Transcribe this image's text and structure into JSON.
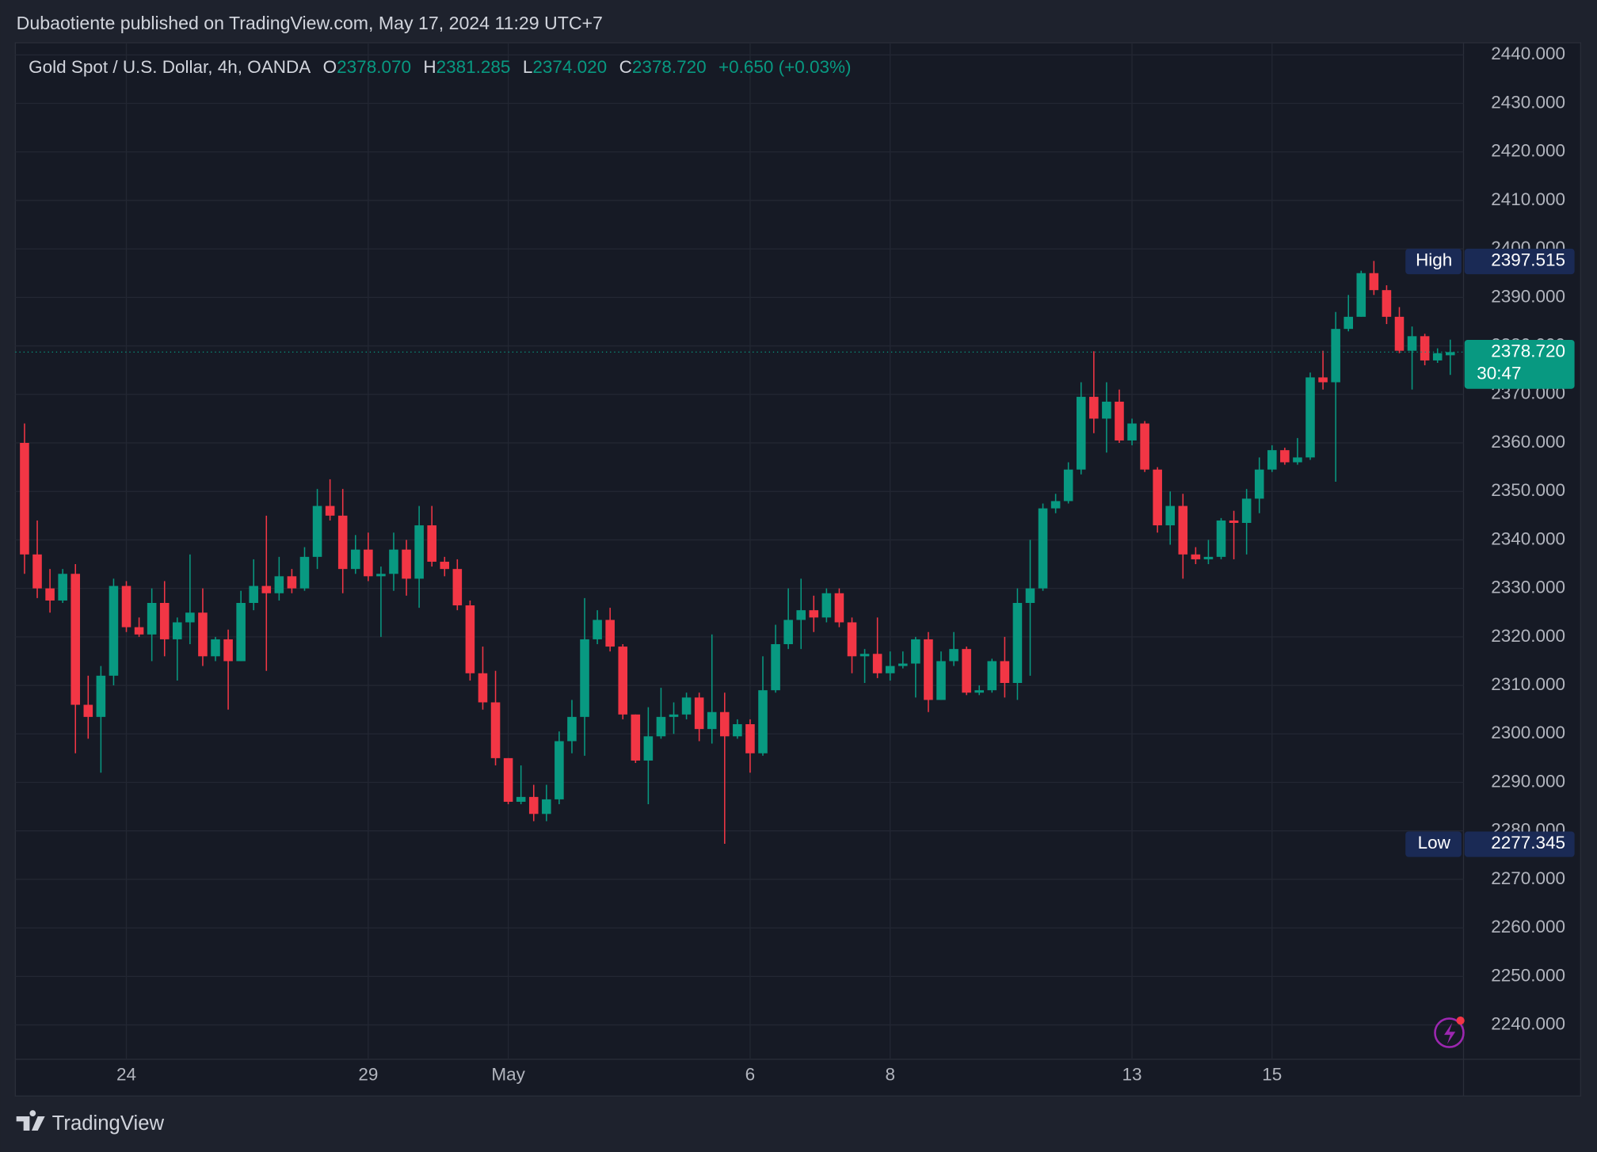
{
  "header": "Dubaotiente published on TradingView.com, May 17, 2024 11:29 UTC+7",
  "footer": "TradingView",
  "chart_data": {
    "type": "candlestick",
    "symbol": "Gold Spot / U.S. Dollar, 4h, OANDA",
    "ohlc_legend": [
      {
        "key": "O",
        "value": "2378.070"
      },
      {
        "key": "H",
        "value": "2381.285"
      },
      {
        "key": "L",
        "value": "2374.020"
      },
      {
        "key": "C",
        "value": "2378.720"
      }
    ],
    "change": "+0.650 (+0.03%)",
    "up_color": "#089981",
    "down_color": "#f23645",
    "categories": [
      null,
      null,
      null,
      null,
      null,
      null,
      null,
      null,
      "24",
      null,
      null,
      null,
      null,
      null,
      null,
      null,
      null,
      null,
      null,
      null,
      null,
      null,
      null,
      null,
      null,
      null,
      null,
      "29",
      null,
      null,
      null,
      null,
      null,
      null,
      null,
      null,
      null,
      null,
      "May",
      null,
      null,
      null,
      null,
      null,
      null,
      null,
      null,
      null,
      null,
      null,
      null,
      null,
      null,
      null,
      null,
      null,
      null,
      "6",
      null,
      null,
      null,
      null,
      null,
      null,
      null,
      null,
      null,
      null,
      "8",
      null,
      null,
      null,
      null,
      null,
      null,
      null,
      null,
      null,
      null,
      null,
      null,
      null,
      null,
      null,
      null,
      null,
      null,
      "13",
      null,
      null,
      null,
      null,
      null,
      null,
      null,
      null,
      null,
      null,
      "15",
      null,
      null,
      null,
      null,
      null,
      null,
      null,
      null,
      null,
      null,
      null,
      null,
      null,
      null
    ],
    "open": [
      2360,
      2337,
      2330,
      2327.5,
      2333,
      2306,
      2303.5,
      2312,
      2330.5,
      2322,
      2320.5,
      2327,
      2319.5,
      2323,
      2325,
      2316,
      2319.5,
      2315,
      2327,
      2330.5,
      2329,
      2332.5,
      2330,
      2336.5,
      2347,
      2345,
      2334,
      2338,
      2332.5,
      2333,
      2338,
      2332,
      2343,
      2335.5,
      2334,
      2326.5,
      2312.5,
      2306.5,
      2295,
      2286,
      2287,
      2283.5,
      2286.5,
      2298.5,
      2303.5,
      2319.5,
      2323.5,
      2318,
      2304,
      2294.5,
      2299.5,
      2303.5,
      2304,
      2307.5,
      2301,
      2304.5,
      2299.5,
      2302,
      2296,
      2309,
      2318.5,
      2323.5,
      2325.5,
      2324,
      2329,
      2323,
      2316,
      2316.5,
      2312.5,
      2314,
      2314.5,
      2319.5,
      2307,
      2315,
      2317.5,
      2308.5,
      2309,
      2315,
      2310.5,
      2327,
      2330,
      2346.5,
      2348,
      2354.5,
      2369.5,
      2365,
      2368.5,
      2360.5,
      2364,
      2354.5,
      2343,
      2347,
      2337,
      2336,
      2336.5,
      2344,
      2343.5,
      2348.5,
      2354.5,
      2358.5,
      2356,
      2357,
      2373.5,
      2372.5,
      2383.5,
      2386,
      2395,
      2391.5,
      2386,
      2379,
      2382,
      2377,
      2378.07
    ],
    "high": [
      2364,
      2344,
      2334,
      2334,
      2335,
      2312,
      2314,
      2332,
      2331.5,
      2324,
      2330,
      2331.5,
      2324,
      2337,
      2330,
      2320,
      2321.5,
      2329.5,
      2336,
      2345,
      2336.5,
      2334,
      2338.5,
      2350.5,
      2352.5,
      2350.5,
      2341,
      2341.5,
      2334.5,
      2341.5,
      2340,
      2347,
      2347,
      2336.5,
      2336,
      2327.5,
      2318,
      2313,
      2295,
      2293.5,
      2289.5,
      2289.5,
      2300.5,
      2307,
      2328,
      2325.5,
      2326,
      2318.5,
      2304,
      2305.5,
      2309.5,
      2306.5,
      2308.5,
      2308.5,
      2320.5,
      2308.5,
      2303,
      2303,
      2316,
      2322.5,
      2330,
      2332,
      2328.5,
      2330,
      2330,
      2324,
      2317.5,
      2324,
      2317,
      2317,
      2320,
      2321,
      2317,
      2321,
      2318,
      2310,
      2315.5,
      2320,
      2330,
      2340,
      2347.5,
      2349.5,
      2356,
      2372.5,
      2378.9,
      2372.5,
      2371,
      2365,
      2364.5,
      2355,
      2350,
      2349.5,
      2338.5,
      2340,
      2344.5,
      2346,
      2350.5,
      2357,
      2359.5,
      2359,
      2361,
      2374.5,
      2379,
      2387,
      2390.5,
      2395.5,
      2397.515,
      2392.5,
      2388,
      2384,
      2382.5,
      2379.5,
      2381.285
    ],
    "low": [
      2333,
      2328,
      2325,
      2327,
      2296,
      2299,
      2292,
      2310,
      2321,
      2320,
      2315,
      2316,
      2311,
      2318.5,
      2314,
      2315,
      2305,
      2315,
      2325.5,
      2313,
      2327.5,
      2329,
      2329.5,
      2334,
      2344,
      2329,
      2333,
      2331.5,
      2320,
      2329.5,
      2328.5,
      2326,
      2334.5,
      2332.5,
      2325.5,
      2311,
      2305,
      2293.5,
      2285.5,
      2285.5,
      2282,
      2282,
      2285.5,
      2296,
      2295.5,
      2318.5,
      2317,
      2303,
      2294,
      2285.5,
      2299,
      2300,
      2303,
      2298.5,
      2298,
      2277.345,
      2299,
      2292,
      2295.5,
      2308.5,
      2317.5,
      2317.5,
      2321,
      2323,
      2322,
      2312.5,
      2310.5,
      2311.5,
      2311,
      2313.5,
      2307.5,
      2304.5,
      2307,
      2314,
      2308,
      2308,
      2308.5,
      2307.5,
      2307,
      2312,
      2329.5,
      2345.5,
      2347.5,
      2353.5,
      2362,
      2358,
      2360,
      2359.5,
      2354,
      2341.5,
      2339,
      2332,
      2335,
      2335,
      2336,
      2336,
      2337,
      2345.5,
      2354,
      2355.5,
      2355.5,
      2356.5,
      2371,
      2352,
      2383,
      2386,
      2390.5,
      2384.5,
      2378.5,
      2371,
      2376,
      2376.5,
      2374.02
    ],
    "close": [
      2337,
      2330,
      2327.5,
      2333,
      2306,
      2303.5,
      2312,
      2330.5,
      2322,
      2320.5,
      2327,
      2319.5,
      2323,
      2325,
      2316,
      2319.5,
      2315,
      2327,
      2330.5,
      2329,
      2332.5,
      2330,
      2336.5,
      2347,
      2345,
      2334,
      2338,
      2332.5,
      2333,
      2338,
      2332,
      2343,
      2335.5,
      2334,
      2326.5,
      2312.5,
      2306.5,
      2295,
      2286,
      2287,
      2283.5,
      2286.5,
      2298.5,
      2303.5,
      2319.5,
      2323.5,
      2318,
      2304,
      2294.5,
      2299.5,
      2303.5,
      2304,
      2307.5,
      2301,
      2304.5,
      2299.5,
      2302,
      2296,
      2309,
      2318.5,
      2323.5,
      2325.5,
      2324,
      2329,
      2323,
      2316,
      2316.5,
      2312.5,
      2314,
      2314.5,
      2319.5,
      2307,
      2315,
      2317.5,
      2308.5,
      2309,
      2315,
      2310.5,
      2327,
      2330,
      2346.5,
      2348,
      2354.5,
      2369.5,
      2365,
      2368.5,
      2360.5,
      2364,
      2354.5,
      2343,
      2347,
      2337,
      2336,
      2336.5,
      2344,
      2343.5,
      2348.5,
      2354.5,
      2358.5,
      2356,
      2357,
      2373.5,
      2372.5,
      2383.5,
      2386,
      2395,
      2391.5,
      2386,
      2379,
      2382,
      2377,
      2378.5,
      2378.72
    ],
    "ylim": [
      2232.9,
      2442.5
    ],
    "yticks": [
      {
        "value": 2240,
        "label": "2240.000"
      },
      {
        "value": 2250,
        "label": "2250.000"
      },
      {
        "value": 2260,
        "label": "2260.000"
      },
      {
        "value": 2270,
        "label": "2270.000"
      },
      {
        "value": 2280,
        "label": "2280.000"
      },
      {
        "value": 2290,
        "label": "2290.000"
      },
      {
        "value": 2300,
        "label": "2300.000"
      },
      {
        "value": 2310,
        "label": "2310.000"
      },
      {
        "value": 2320,
        "label": "2320.000"
      },
      {
        "value": 2330,
        "label": "2330.000"
      },
      {
        "value": 2340,
        "label": "2340.000"
      },
      {
        "value": 2350,
        "label": "2350.000"
      },
      {
        "value": 2360,
        "label": "2360.000"
      },
      {
        "value": 2370,
        "label": "2370.000"
      },
      {
        "value": 2380,
        "label": "2380.000"
      },
      {
        "value": 2390,
        "label": "2390.000"
      },
      {
        "value": 2400,
        "label": "2400.000"
      },
      {
        "value": 2410,
        "label": "2410.000"
      },
      {
        "value": 2420,
        "label": "2420.000"
      },
      {
        "value": 2430,
        "label": "2430.000"
      },
      {
        "value": 2440,
        "label": "2440.000"
      }
    ],
    "grid": true,
    "high_marker": {
      "label": "High",
      "value": 2397.515
    },
    "low_marker": {
      "label": "Low",
      "value": 2277.345
    },
    "last_price": {
      "value": 2378.72,
      "label": "2378.720",
      "countdown": "30:47"
    }
  }
}
